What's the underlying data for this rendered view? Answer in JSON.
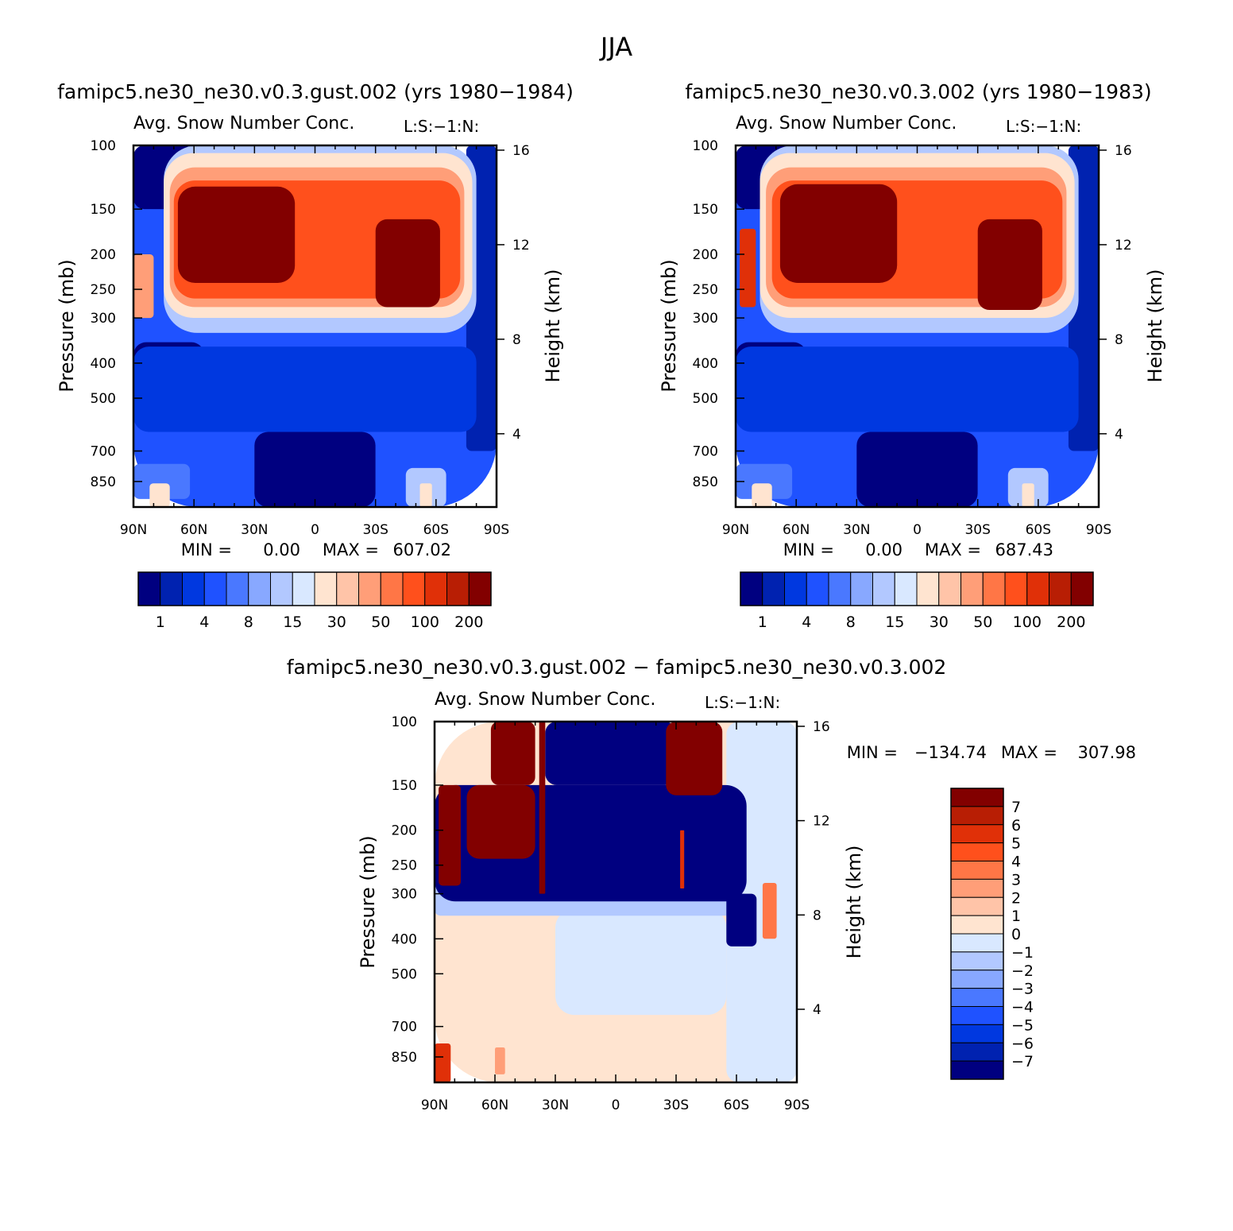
{
  "figure_title": "JJA",
  "palettes": {
    "abs": [
      "#000080",
      "#0022b0",
      "#0038e0",
      "#1f52ff",
      "#4a78ff",
      "#88a8ff",
      "#b2c8ff",
      "#d9e8ff",
      "#ffe4d0",
      "#ffc4a8",
      "#ff9e78",
      "#ff7646",
      "#ff501c",
      "#e03008",
      "#b81e04",
      "#820000"
    ],
    "diff": [
      "#000080",
      "#0022b0",
      "#0038e0",
      "#1f52ff",
      "#4a78ff",
      "#88a8ff",
      "#b2c8ff",
      "#d9e8ff",
      "#ffe4d0",
      "#ffc4a8",
      "#ff9e78",
      "#ff7646",
      "#ff501c",
      "#e03008",
      "#b81e04",
      "#820000"
    ]
  },
  "chart_data": [
    {
      "id": "panel-left",
      "type": "heatmap",
      "title": "famipc5.ne30_ne30.v0.3.gust.002 (yrs 1980−1984)",
      "subtitle": "Avg. Snow Number Conc.",
      "right_string": "L:S:−1:N:",
      "xlabel": "",
      "ylabel": "Pressure (mb)",
      "y2label": "Height (km)",
      "x_ticks": [
        "90N",
        "60N",
        "30N",
        "0",
        "30S",
        "60S",
        "90S"
      ],
      "y_ticks": [
        100,
        150,
        200,
        250,
        300,
        400,
        500,
        700,
        850
      ],
      "y2_ticks": [
        16,
        12,
        8,
        4
      ],
      "min_label": "MIN =",
      "min_value": "0.00",
      "max_label": "MAX =",
      "max_value": "607.02",
      "colorbar_labels": [
        "1",
        "4",
        "8",
        "15",
        "30",
        "50",
        "100",
        "200"
      ],
      "regions": [
        {
          "lat0": 90,
          "lat1": -90,
          "p0": 100,
          "p1": 1000,
          "level": 3
        },
        {
          "lat0": 90,
          "lat1": 55,
          "p0": 350,
          "p1": 560,
          "level": 0
        },
        {
          "lat0": 30,
          "lat1": -30,
          "p0": 620,
          "p1": 1000,
          "level": 0
        },
        {
          "lat0": 90,
          "lat1": 60,
          "p0": 100,
          "p1": 150,
          "level": 0
        },
        {
          "lat0": -75,
          "lat1": -90,
          "p0": 100,
          "p1": 700,
          "level": 1
        },
        {
          "lat0": 90,
          "lat1": -80,
          "p0": 360,
          "p1": 620,
          "level": 2
        },
        {
          "lat0": 90,
          "lat1": 62,
          "p0": 760,
          "p1": 950,
          "level": 4
        },
        {
          "lat0": 82,
          "lat1": 72,
          "p0": 860,
          "p1": 1000,
          "level": 8
        },
        {
          "lat0": -45,
          "lat1": -65,
          "p0": 780,
          "p1": 1000,
          "level": 6
        },
        {
          "lat0": -52,
          "lat1": -58,
          "p0": 860,
          "p1": 1000,
          "level": 8
        },
        {
          "lat0": 75,
          "lat1": -80,
          "p0": 100,
          "p1": 330,
          "level": 6
        },
        {
          "lat0": 75,
          "lat1": -78,
          "p0": 105,
          "p1": 300,
          "level": 8
        },
        {
          "lat0": 72,
          "lat1": -74,
          "p0": 115,
          "p1": 280,
          "level": 10
        },
        {
          "lat0": 70,
          "lat1": -72,
          "p0": 125,
          "p1": 265,
          "level": 12
        },
        {
          "lat0": 68,
          "lat1": 10,
          "p0": 130,
          "p1": 240,
          "level": 15
        },
        {
          "lat0": 62,
          "lat1": 30,
          "p0": 175,
          "p1": 240,
          "level": 15
        },
        {
          "lat0": -30,
          "lat1": -62,
          "p0": 160,
          "p1": 280,
          "level": 15
        },
        {
          "lat0": 90,
          "lat1": 80,
          "p0": 200,
          "p1": 300,
          "level": 10
        }
      ]
    },
    {
      "id": "panel-right",
      "type": "heatmap",
      "title": "famipc5.ne30_ne30.v0.3.002 (yrs 1980−1983)",
      "subtitle": "Avg. Snow Number Conc.",
      "right_string": "L:S:−1:N:",
      "xlabel": "",
      "ylabel": "Pressure (mb)",
      "y2label": "Height (km)",
      "x_ticks": [
        "90N",
        "60N",
        "30N",
        "0",
        "30S",
        "60S",
        "90S"
      ],
      "y_ticks": [
        100,
        150,
        200,
        250,
        300,
        400,
        500,
        700,
        850
      ],
      "y2_ticks": [
        16,
        12,
        8,
        4
      ],
      "min_label": "MIN =",
      "min_value": "0.00",
      "max_label": "MAX =",
      "max_value": "687.43",
      "colorbar_labels": [
        "1",
        "4",
        "8",
        "15",
        "30",
        "50",
        "100",
        "200"
      ],
      "regions": [
        {
          "lat0": 90,
          "lat1": -90,
          "p0": 100,
          "p1": 1000,
          "level": 3
        },
        {
          "lat0": 90,
          "lat1": 55,
          "p0": 350,
          "p1": 560,
          "level": 0
        },
        {
          "lat0": 30,
          "lat1": -30,
          "p0": 620,
          "p1": 1000,
          "level": 0
        },
        {
          "lat0": 90,
          "lat1": 60,
          "p0": 100,
          "p1": 150,
          "level": 0
        },
        {
          "lat0": -75,
          "lat1": -90,
          "p0": 100,
          "p1": 700,
          "level": 1
        },
        {
          "lat0": 90,
          "lat1": -80,
          "p0": 360,
          "p1": 620,
          "level": 2
        },
        {
          "lat0": 90,
          "lat1": 62,
          "p0": 760,
          "p1": 950,
          "level": 4
        },
        {
          "lat0": 82,
          "lat1": 72,
          "p0": 860,
          "p1": 1000,
          "level": 8
        },
        {
          "lat0": -45,
          "lat1": -65,
          "p0": 780,
          "p1": 1000,
          "level": 6
        },
        {
          "lat0": -52,
          "lat1": -58,
          "p0": 860,
          "p1": 1000,
          "level": 8
        },
        {
          "lat0": 78,
          "lat1": -80,
          "p0": 100,
          "p1": 330,
          "level": 6
        },
        {
          "lat0": 78,
          "lat1": -78,
          "p0": 105,
          "p1": 300,
          "level": 8
        },
        {
          "lat0": 75,
          "lat1": -74,
          "p0": 115,
          "p1": 280,
          "level": 10
        },
        {
          "lat0": 72,
          "lat1": -72,
          "p0": 125,
          "p1": 265,
          "level": 12
        },
        {
          "lat0": 68,
          "lat1": 10,
          "p0": 128,
          "p1": 240,
          "level": 15
        },
        {
          "lat0": 62,
          "lat1": 30,
          "p0": 170,
          "p1": 240,
          "level": 15
        },
        {
          "lat0": -30,
          "lat1": -62,
          "p0": 160,
          "p1": 285,
          "level": 15
        },
        {
          "lat0": 88,
          "lat1": 80,
          "p0": 170,
          "p1": 280,
          "level": 13
        }
      ]
    },
    {
      "id": "panel-diff",
      "type": "heatmap",
      "title": "famipc5.ne30_ne30.v0.3.gust.002 − famipc5.ne30_ne30.v0.3.002",
      "subtitle": "Avg. Snow Number Conc.",
      "right_string": "L:S:−1:N:",
      "xlabel": "",
      "ylabel": "Pressure (mb)",
      "y2label": "Height (km)",
      "x_ticks": [
        "90N",
        "60N",
        "30N",
        "0",
        "30S",
        "60S",
        "90S"
      ],
      "y_ticks": [
        100,
        150,
        200,
        250,
        300,
        400,
        500,
        700,
        850
      ],
      "y2_ticks": [
        16,
        12,
        8,
        4
      ],
      "min_label": "MIN =",
      "min_value": "−134.74",
      "max_label": "MAX =",
      "max_value": "307.98",
      "colorbar_labels": [
        "7",
        "6",
        "5",
        "4",
        "3",
        "2",
        "1",
        "0",
        "−1",
        "−2",
        "−3",
        "−4",
        "−5",
        "−6",
        "−7"
      ],
      "regions": [
        {
          "lat0": 90,
          "lat1": -90,
          "p0": 100,
          "p1": 1000,
          "level": 8
        },
        {
          "lat0": 30,
          "lat1": -55,
          "p0": 330,
          "p1": 650,
          "level": 7
        },
        {
          "lat0": -55,
          "lat1": -90,
          "p0": 100,
          "p1": 1000,
          "level": 7
        },
        {
          "lat0": 90,
          "lat1": -63,
          "p0": 280,
          "p1": 345,
          "level": 6
        },
        {
          "lat0": 90,
          "lat1": -65,
          "p0": 150,
          "p1": 315,
          "level": 0
        },
        {
          "lat0": 35,
          "lat1": -30,
          "p0": 100,
          "p1": 150,
          "level": 0
        },
        {
          "lat0": -55,
          "lat1": -70,
          "p0": 300,
          "p1": 420,
          "level": 0
        },
        {
          "lat0": 88,
          "lat1": 77,
          "p0": 150,
          "p1": 285,
          "level": 15
        },
        {
          "lat0": 74,
          "lat1": 40,
          "p0": 150,
          "p1": 240,
          "level": 15
        },
        {
          "lat0": 62,
          "lat1": 40,
          "p0": 100,
          "p1": 150,
          "level": 15
        },
        {
          "lat0": 38,
          "lat1": 35,
          "p0": 100,
          "p1": 300,
          "level": 15
        },
        {
          "lat0": -25,
          "lat1": -53,
          "p0": 100,
          "p1": 160,
          "level": 15
        },
        {
          "lat0": -32,
          "lat1": -34,
          "p0": 200,
          "p1": 290,
          "level": 13
        },
        {
          "lat0": -73,
          "lat1": -80,
          "p0": 280,
          "p1": 400,
          "level": 11
        },
        {
          "lat0": 90,
          "lat1": 82,
          "p0": 780,
          "p1": 1000,
          "level": 13
        },
        {
          "lat0": 60,
          "lat1": 55,
          "p0": 800,
          "p1": 950,
          "level": 10
        }
      ]
    }
  ]
}
